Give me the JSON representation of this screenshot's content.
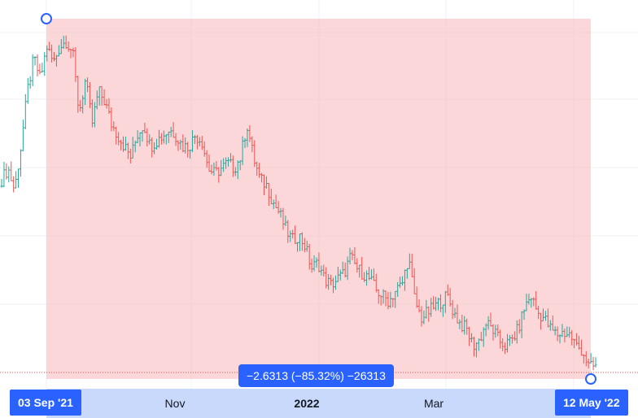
{
  "chart_data": {
    "type": "ohlc",
    "colors": {
      "up": "#26a69a",
      "down": "#ef5350",
      "measure_fill": "#f7b7b9",
      "accent": "#2962ff"
    },
    "grid": true,
    "x_axis": {
      "tick_labels": [
        "Nov",
        "2022",
        "Mar"
      ],
      "selection_start": "03 Sep '21",
      "selection_end": "12 May '22"
    },
    "measure": {
      "text": "−2.6313 (−85.32%) −26313",
      "change": -2.6313,
      "change_pct": -85.32,
      "ticks": -26313
    },
    "approx_close_series": [
      1.8,
      1.9,
      1.7,
      2.1,
      2.6,
      2.9,
      2.7,
      3.0,
      2.85,
      3.0,
      3.05,
      2.95,
      2.4,
      2.7,
      2.3,
      2.6,
      2.5,
      2.3,
      2.2,
      2.1,
      2.0,
      2.2,
      2.3,
      2.1,
      2.15,
      2.2,
      2.25,
      2.2,
      2.1,
      2.1,
      2.2,
      2.15,
      1.9,
      1.85,
      1.9,
      1.95,
      1.9,
      2.0,
      2.3,
      2.0,
      1.8,
      1.75,
      1.6,
      1.5,
      1.35,
      1.25,
      1.3,
      1.2,
      1.0,
      1.05,
      0.9,
      0.85,
      0.9,
      0.95,
      1.1,
      1.0,
      0.95,
      0.9,
      0.8,
      0.75,
      0.7,
      0.8,
      0.85,
      1.1,
      0.7,
      0.55,
      0.6,
      0.65,
      0.7,
      0.75,
      0.6,
      0.5,
      0.45,
      0.3,
      0.35,
      0.5,
      0.45,
      0.35,
      0.3,
      0.35,
      0.45,
      0.65,
      0.75,
      0.6,
      0.55,
      0.45,
      0.4,
      0.42,
      0.4,
      0.3,
      0.25,
      0.1,
      0.12
    ]
  }
}
